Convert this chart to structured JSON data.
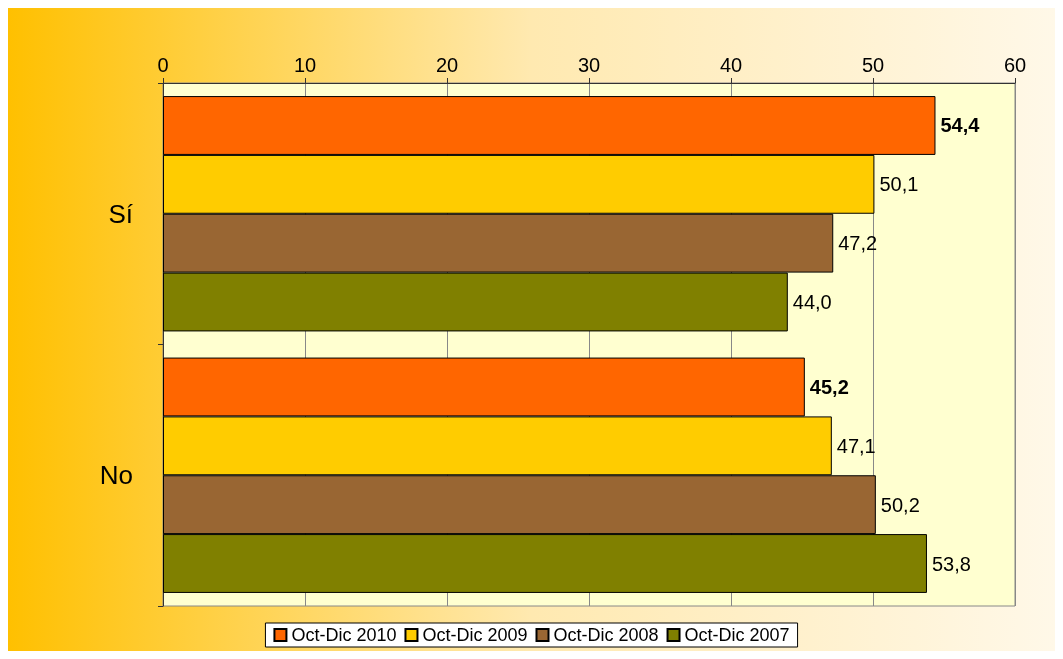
{
  "chart_data": {
    "type": "bar",
    "orientation": "horizontal",
    "categories": [
      "Sí",
      "No"
    ],
    "series": [
      {
        "name": "Oct-Dic 2010",
        "color": "#ff6600",
        "values": [
          54.4,
          45.2
        ],
        "value_labels": [
          "54,4",
          "45,2"
        ]
      },
      {
        "name": "Oct-Dic 2009",
        "color": "#ffcc00",
        "values": [
          50.1,
          47.1
        ],
        "value_labels": [
          "50,1",
          "47,1"
        ]
      },
      {
        "name": "Oct-Dic 2008",
        "color": "#996633",
        "values": [
          47.2,
          50.2
        ],
        "value_labels": [
          "47,2",
          "50,2"
        ]
      },
      {
        "name": "Oct-Dic 2007",
        "color": "#808000",
        "values": [
          44.0,
          53.8
        ],
        "value_labels": [
          "44,0",
          "53,8"
        ]
      }
    ],
    "xlim": [
      0,
      60
    ],
    "xticks": [
      0,
      10,
      20,
      30,
      40,
      50,
      60
    ],
    "grid": "x",
    "legend": "bottom"
  }
}
